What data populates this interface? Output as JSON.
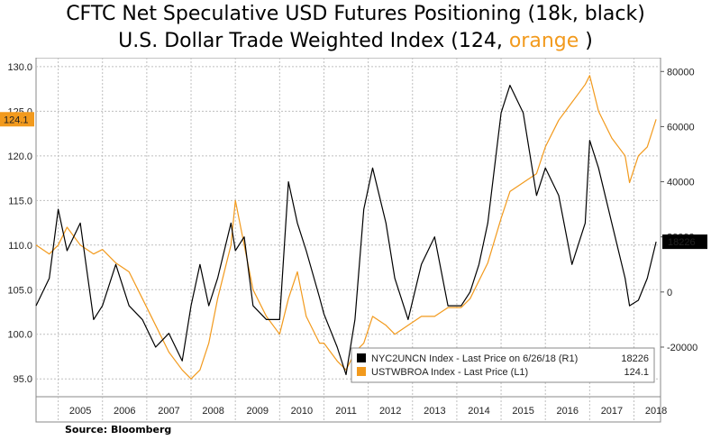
{
  "title_line1": "CFTC Net Speculative USD Futures Positioning (18k, black)",
  "title_line2_prefix": "U.S. Dollar Trade Weighted Index (124, ",
  "title_line2_highlight": "orange",
  "title_line2_suffix": " )",
  "source": "Source: Bloomberg",
  "colors": {
    "orange": "#F29A1D",
    "black": "#000000",
    "grid": "#bfbfbf"
  },
  "chart_data": {
    "type": "line",
    "x_ticks": [
      "2005",
      "2006",
      "2007",
      "2008",
      "2009",
      "2010",
      "2011",
      "2012",
      "2013",
      "2014",
      "2015",
      "2016",
      "2017",
      "2018"
    ],
    "left_axis": {
      "range": [
        93,
        131
      ],
      "ticks": [
        "95.0",
        "100.0",
        "105.0",
        "110.0",
        "115.0",
        "120.0",
        "125.0",
        "130.0"
      ]
    },
    "right_axis": {
      "range": [
        -38000,
        85000
      ],
      "ticks": [
        "-20000",
        "0",
        "20000",
        "40000",
        "60000",
        "80000"
      ]
    },
    "last_value_tags": {
      "left": "124.1",
      "right": "18226"
    },
    "legend": [
      {
        "label": "NYC2UNCN Index - Last Price on 6/26/18 (R1)",
        "value": "18226",
        "color": "#000000"
      },
      {
        "label": "USTWBROA Index - Last Price (L1)",
        "value": "124.1",
        "color": "#F29A1D"
      }
    ],
    "series": [
      {
        "name": "USTWBROA Index - Last Price (L1)",
        "axis": "left",
        "color": "#F29A1D",
        "x": [
          2004.5,
          2004.8,
          2005.0,
          2005.2,
          2005.5,
          2005.8,
          2006.0,
          2006.3,
          2006.6,
          2006.9,
          2007.2,
          2007.5,
          2007.8,
          2008.0,
          2008.2,
          2008.4,
          2008.6,
          2008.9,
          2009.0,
          2009.2,
          2009.4,
          2009.7,
          2010.0,
          2010.2,
          2010.4,
          2010.6,
          2010.9,
          2011.0,
          2011.3,
          2011.5,
          2011.7,
          2011.9,
          2012.1,
          2012.4,
          2012.6,
          2012.9,
          2013.2,
          2013.5,
          2013.8,
          2014.1,
          2014.3,
          2014.5,
          2014.7,
          2015.0,
          2015.2,
          2015.5,
          2015.8,
          2016.0,
          2016.3,
          2016.6,
          2016.9,
          2017.0,
          2017.2,
          2017.5,
          2017.8,
          2017.9,
          2018.1,
          2018.3,
          2018.5
        ],
        "y": [
          110,
          109,
          110,
          112,
          110,
          109,
          109.5,
          108,
          107,
          104,
          101,
          98,
          96,
          95,
          96,
          99,
          104,
          110,
          115,
          110,
          105,
          102,
          100,
          104,
          107,
          102,
          99,
          99,
          97,
          96,
          98,
          99,
          102,
          101,
          100,
          101,
          102,
          102,
          103,
          103,
          104,
          106,
          108,
          113,
          116,
          117,
          118,
          121,
          124,
          126,
          128,
          129,
          125,
          122,
          120,
          117,
          120,
          121,
          124.1
        ]
      },
      {
        "name": "NYC2UNCN Index - Last Price on 6/26/18 (R1)",
        "axis": "right",
        "color": "#000000",
        "x": [
          2004.5,
          2004.8,
          2005.0,
          2005.2,
          2005.5,
          2005.8,
          2006.0,
          2006.3,
          2006.6,
          2006.9,
          2007.2,
          2007.5,
          2007.8,
          2008.0,
          2008.2,
          2008.4,
          2008.6,
          2008.9,
          2009.0,
          2009.2,
          2009.4,
          2009.7,
          2010.0,
          2010.2,
          2010.4,
          2010.6,
          2010.9,
          2011.0,
          2011.3,
          2011.5,
          2011.7,
          2011.9,
          2012.1,
          2012.4,
          2012.6,
          2012.9,
          2013.2,
          2013.5,
          2013.8,
          2014.1,
          2014.3,
          2014.5,
          2014.7,
          2015.0,
          2015.2,
          2015.5,
          2015.8,
          2016.0,
          2016.3,
          2016.6,
          2016.9,
          2017.0,
          2017.2,
          2017.5,
          2017.8,
          2017.9,
          2018.1,
          2018.3,
          2018.5
        ],
        "y": [
          -5000,
          5000,
          30000,
          15000,
          25000,
          -10000,
          -5000,
          10000,
          -5000,
          -10000,
          -20000,
          -15000,
          -25000,
          -5000,
          10000,
          -5000,
          5000,
          25000,
          15000,
          20000,
          -5000,
          -10000,
          -10000,
          40000,
          25000,
          15000,
          -2000,
          -8000,
          -20000,
          -30000,
          -10000,
          30000,
          45000,
          25000,
          5000,
          -10000,
          10000,
          20000,
          -5000,
          -5000,
          0,
          10000,
          25000,
          65000,
          75000,
          65000,
          35000,
          45000,
          35000,
          10000,
          25000,
          55000,
          45000,
          25000,
          5000,
          -5000,
          -3000,
          5000,
          18226
        ]
      }
    ]
  }
}
